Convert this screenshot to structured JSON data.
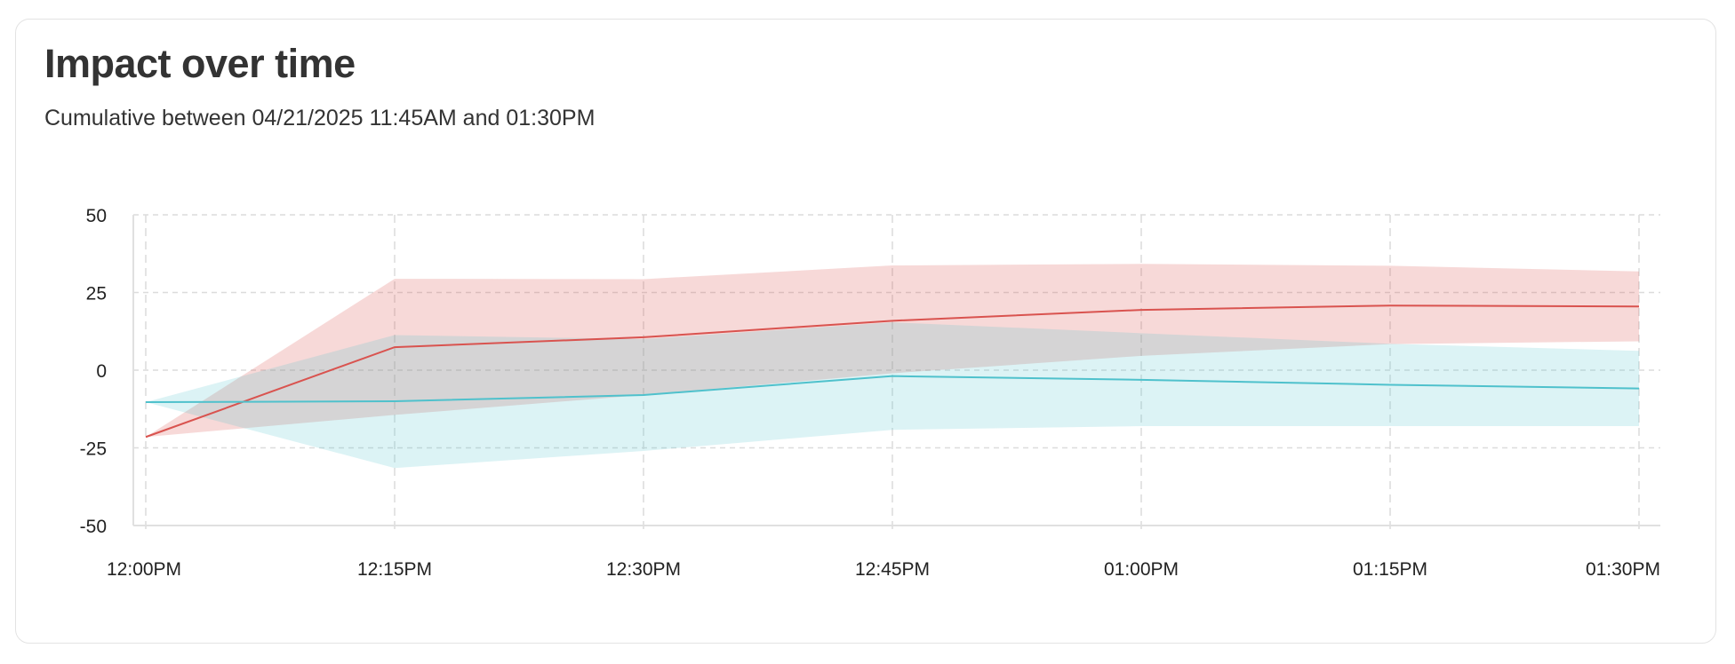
{
  "header": {
    "title": "Impact over time",
    "subtitle": "Cumulative between 04/21/2025 11:45AM and 01:30PM"
  },
  "chart_data": {
    "type": "line",
    "title": "Impact over time",
    "subtitle": "Cumulative between 04/21/2025 11:45AM and 01:30PM",
    "categories": [
      "12:00PM",
      "12:15PM",
      "12:30PM",
      "12:45PM",
      "01:00PM",
      "01:15PM",
      "01:30PM"
    ],
    "ylim": [
      -50,
      50
    ],
    "yticks": [
      50,
      25,
      0,
      -25,
      -50
    ],
    "grid": true,
    "series": [
      {
        "color": "#d9534f",
        "band_color": "#f2cfd0",
        "values": [
          -21.5,
          7.4,
          10.6,
          15.9,
          19.4,
          20.8,
          20.5
        ],
        "upper": [
          -21.5,
          29.4,
          29.3,
          33.7,
          34.2,
          33.6,
          31.8
        ],
        "lower": [
          -21.5,
          -14.4,
          -8.0,
          -1.0,
          4.6,
          8.4,
          9.3
        ]
      },
      {
        "color": "#4fc1cc",
        "band_color": "#cdeef2",
        "values": [
          -10.3,
          -10.0,
          -8.0,
          -1.9,
          -3.1,
          -4.7,
          -5.9
        ],
        "upper": [
          -10.3,
          11.3,
          10.0,
          15.4,
          11.9,
          8.5,
          6.2
        ],
        "lower": [
          -10.3,
          -31.5,
          -26.0,
          -19.2,
          -18.0,
          -18.0,
          -18.0
        ]
      }
    ]
  }
}
